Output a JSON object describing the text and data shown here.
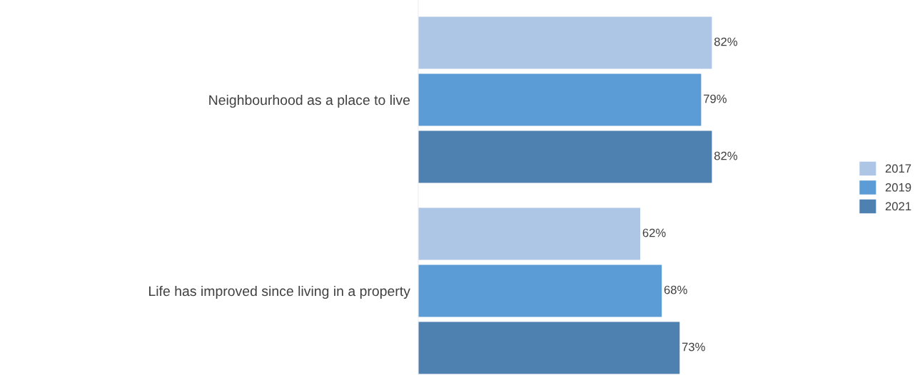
{
  "chart_data": {
    "type": "bar",
    "orientation": "horizontal",
    "categories": [
      "Neighbourhood as a place to live",
      "Life has improved since living in a property"
    ],
    "series": [
      {
        "name": "2017",
        "color": "#adc6e6",
        "values": [
          82,
          62
        ],
        "value_labels": [
          "82%",
          "62%"
        ]
      },
      {
        "name": "2019",
        "color": "#5b9bd6",
        "values": [
          79,
          68
        ],
        "value_labels": [
          "79%",
          "68%"
        ]
      },
      {
        "name": "2021",
        "color": "#4e80b0",
        "values": [
          82,
          73
        ],
        "value_labels": [
          "82%",
          "73%"
        ]
      }
    ],
    "grid": false,
    "legend": "right"
  }
}
